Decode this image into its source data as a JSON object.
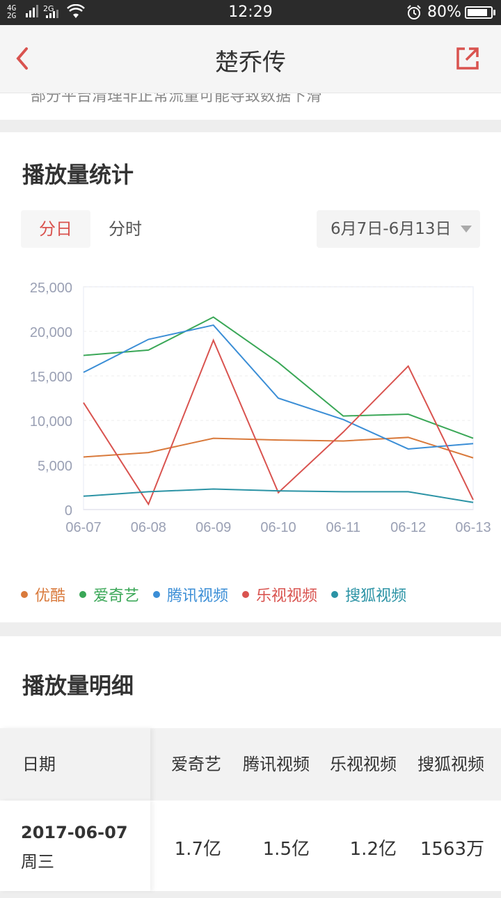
{
  "status_bar": {
    "signal1": "4G",
    "signal2": "2G",
    "signal3": "2G",
    "time": "12:29",
    "battery": "80%"
  },
  "nav": {
    "title": "楚乔传",
    "back_icon": "back-chevron-icon",
    "share_icon": "share-external-icon"
  },
  "cut_text": "部分平台清理非正常流量可能导致数据下滑",
  "stats": {
    "title": "播放量统计",
    "tab_day": "分日",
    "tab_hour": "分时",
    "date_range": "6月7日-6月13日"
  },
  "chart_data": {
    "type": "line",
    "x": [
      "06-07",
      "06-08",
      "06-09",
      "06-10",
      "06-11",
      "06-12",
      "06-13"
    ],
    "ylim": [
      0,
      25000
    ],
    "yticks": [
      "0",
      "5,000",
      "10,000",
      "15,000",
      "20,000",
      "25,000"
    ],
    "ytick_values": [
      0,
      5000,
      10000,
      15000,
      20000,
      25000
    ],
    "grid": true,
    "legend_position": "bottom",
    "series": [
      {
        "name": "优酷",
        "color": "#d97a3c",
        "values": [
          5900,
          6400,
          8000,
          7800,
          7700,
          8100,
          5800
        ]
      },
      {
        "name": "爱奇艺",
        "color": "#3aa757",
        "values": [
          17300,
          17900,
          21600,
          16500,
          10500,
          10700,
          8000
        ]
      },
      {
        "name": "腾讯视频",
        "color": "#3b8ed6",
        "values": [
          15400,
          19100,
          20700,
          12500,
          10100,
          6800,
          7400
        ]
      },
      {
        "name": "乐视视频",
        "color": "#d9534f",
        "values": [
          12000,
          600,
          19000,
          1900,
          8700,
          16100,
          1100
        ]
      },
      {
        "name": "搜狐视频",
        "color": "#2b93a5",
        "values": [
          1500,
          2000,
          2300,
          2100,
          2000,
          2000,
          800
        ]
      }
    ]
  },
  "detail": {
    "title": "播放量明细",
    "headers": [
      "日期",
      "爱奇艺",
      "腾讯视频",
      "乐视视频",
      "搜狐视频"
    ],
    "rows": [
      {
        "date": "2017-06-07",
        "weekday": "周三",
        "values": [
          "1.7亿",
          "1.5亿",
          "1.2亿",
          "1563万"
        ]
      }
    ]
  }
}
